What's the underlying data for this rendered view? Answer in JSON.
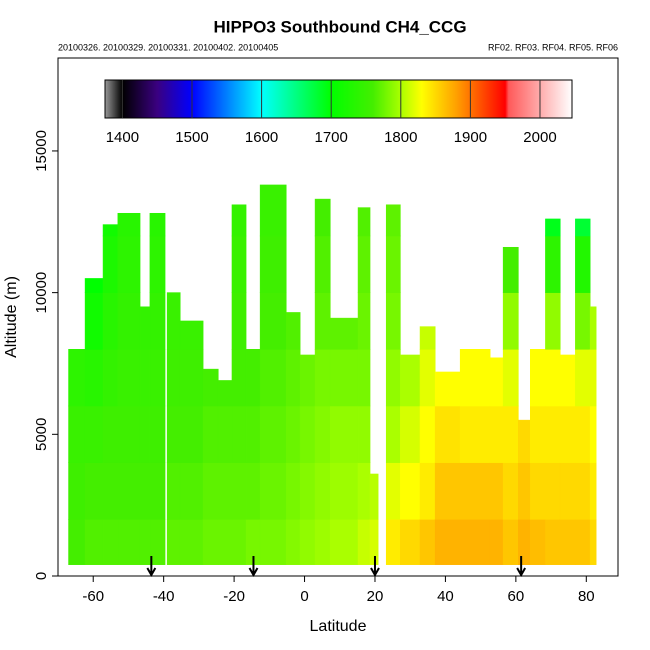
{
  "chart_data": {
    "type": "curtain",
    "title": "HIPPO3 Southbound CH4_CCG",
    "subtitle_left": "20100326. 20100329. 20100331. 20100402. 20100405",
    "subtitle_right": "RF02. RF03. RF04. RF05. RF06",
    "x_label": "Latitude",
    "y_label": "Altitude (m)",
    "xlim": [
      -70,
      89
    ],
    "xticks": [
      -60,
      -40,
      -20,
      0,
      20,
      40,
      60,
      80
    ],
    "ylim": [
      0,
      18280
    ],
    "yticks": [
      0,
      5000,
      10000,
      15000
    ],
    "colorbar": {
      "lim": [
        1375,
        2046
      ],
      "ticks": [
        1400,
        1500,
        1600,
        1700,
        1800,
        1900,
        2000
      ],
      "stops": [
        [
          1375,
          "#999999"
        ],
        [
          1400,
          "#000000"
        ],
        [
          1450,
          "#3a0080"
        ],
        [
          1500,
          "#0000ff"
        ],
        [
          1600,
          "#00ffff"
        ],
        [
          1700,
          "#00ff00"
        ],
        [
          1760,
          "#44ee00"
        ],
        [
          1800,
          "#aaff00"
        ],
        [
          1830,
          "#ffff00"
        ],
        [
          1880,
          "#ffa000"
        ],
        [
          1950,
          "#ff0000"
        ],
        [
          1955,
          "#ff5a5a"
        ],
        [
          2046,
          "#ffffff"
        ]
      ]
    },
    "altitude_levels": [
      400,
      2000,
      4000,
      6000,
      8000,
      10000,
      12000,
      14000
    ],
    "columns": [
      {
        "lat": [
          -67,
          -62.3
        ],
        "top": 8000,
        "values": [
          1760,
          1755,
          1750,
          1740
        ]
      },
      {
        "lat": [
          -62.3,
          -57.2
        ],
        "top": 10500,
        "values": [
          1765,
          1760,
          1750,
          1735,
          1715,
          1700
        ]
      },
      {
        "lat": [
          -57.2,
          -53
        ],
        "top": 12400,
        "values": [
          1765,
          1760,
          1755,
          1745,
          1735,
          1725,
          1715
        ]
      },
      {
        "lat": [
          -53,
          -46.7
        ],
        "top": 12800,
        "values": [
          1765,
          1760,
          1755,
          1750,
          1745,
          1740,
          1735
        ]
      },
      {
        "lat": [
          -46.7,
          -43.9
        ],
        "top": 9500,
        "values": [
          1765,
          1760,
          1755,
          1750,
          1745
        ]
      },
      {
        "lat": [
          -43.9,
          -39.6
        ],
        "top": 12800,
        "values": [
          1765,
          1760,
          1755,
          1750,
          1745,
          1740,
          1735
        ]
      },
      {
        "lat": [
          -39,
          -35.3
        ],
        "top": 10000,
        "values": [
          1770,
          1765,
          1760,
          1755,
          1750
        ]
      },
      {
        "lat": [
          -35.3,
          -28.8
        ],
        "top": 9000,
        "values": [
          1770,
          1765,
          1760,
          1755,
          1750
        ]
      },
      {
        "lat": [
          -28.8,
          -24.5
        ],
        "top": 7300,
        "values": [
          1775,
          1770,
          1765,
          1760
        ]
      },
      {
        "lat": [
          -24.5,
          -20.6
        ],
        "top": 6900,
        "values": [
          1775,
          1770,
          1765,
          1760
        ]
      },
      {
        "lat": [
          -20.6,
          -16.6
        ],
        "top": 13100,
        "values": [
          1775,
          1770,
          1765,
          1760,
          1755,
          1750,
          1745
        ]
      },
      {
        "lat": [
          -16.6,
          -12.6
        ],
        "top": 8000,
        "values": [
          1780,
          1770,
          1765,
          1760
        ]
      },
      {
        "lat": [
          -12.6,
          -5.2
        ],
        "top": 13800,
        "values": [
          1780,
          1775,
          1770,
          1765,
          1760,
          1755,
          1750
        ]
      },
      {
        "lat": [
          -5.2,
          -1.25
        ],
        "top": 9300,
        "values": [
          1785,
          1780,
          1775,
          1770,
          1765
        ]
      },
      {
        "lat": [
          -1.25,
          3
        ],
        "top": 7800,
        "values": [
          1790,
          1785,
          1780,
          1775
        ]
      },
      {
        "lat": [
          3,
          7.3
        ],
        "top": 13300,
        "values": [
          1795,
          1790,
          1785,
          1780,
          1770,
          1765,
          1760
        ]
      },
      {
        "lat": [
          7.3,
          15.2
        ],
        "top": 9100,
        "values": [
          1800,
          1795,
          1790,
          1780,
          1770
        ]
      },
      {
        "lat": [
          15.2,
          18.6
        ],
        "top": 13000,
        "values": [
          1810,
          1800,
          1790,
          1780,
          1775,
          1770,
          1765
        ]
      },
      {
        "lat": [
          18.6,
          20.9
        ],
        "top": 3600,
        "values": [
          1815,
          1805
        ]
      },
      {
        "lat": [
          23.2,
          27.2
        ],
        "top": 13100,
        "values": [
          1840,
          1820,
          1800,
          1790,
          1780,
          1775,
          1770
        ]
      },
      {
        "lat": [
          27.2,
          32.8
        ],
        "top": 7800,
        "values": [
          1850,
          1830,
          1815,
          1800
        ]
      },
      {
        "lat": [
          32.8,
          37.1
        ],
        "top": 8800,
        "values": [
          1860,
          1840,
          1830,
          1820,
          1810
        ]
      },
      {
        "lat": [
          37.1,
          44.2
        ],
        "top": 7200,
        "values": [
          1870,
          1860,
          1845,
          1830
        ]
      },
      {
        "lat": [
          44.2,
          52.7
        ],
        "top": 8000,
        "values": [
          1870,
          1860,
          1840,
          1830
        ]
      },
      {
        "lat": [
          52.7,
          56.4
        ],
        "top": 7700,
        "values": [
          1870,
          1860,
          1840,
          1830
        ]
      },
      {
        "lat": [
          56.4,
          60.7
        ],
        "top": 11600,
        "values": [
          1860,
          1850,
          1840,
          1820,
          1790,
          1760
        ]
      },
      {
        "lat": [
          60.7,
          64.1
        ],
        "top": 5500,
        "values": [
          1870,
          1860,
          1850
        ]
      },
      {
        "lat": [
          64.1,
          68.4
        ],
        "top": 8000,
        "values": [
          1865,
          1850,
          1840,
          1830
        ]
      },
      {
        "lat": [
          68.4,
          72.6
        ],
        "top": 12600,
        "values": [
          1860,
          1850,
          1840,
          1830,
          1790,
          1740,
          1690
        ]
      },
      {
        "lat": [
          72.6,
          76.9
        ],
        "top": 7800,
        "values": [
          1860,
          1850,
          1840,
          1830
        ]
      },
      {
        "lat": [
          76.9,
          81.1
        ],
        "top": 12600,
        "values": [
          1860,
          1850,
          1840,
          1820,
          1780,
          1730,
          1680
        ]
      },
      {
        "lat": [
          81.1,
          82.8
        ],
        "top": 9500,
        "values": [
          1850,
          1840,
          1830,
          1820,
          1800
        ]
      }
    ],
    "arrows": [
      -43.5,
      -14.5,
      20,
      61.5
    ]
  }
}
